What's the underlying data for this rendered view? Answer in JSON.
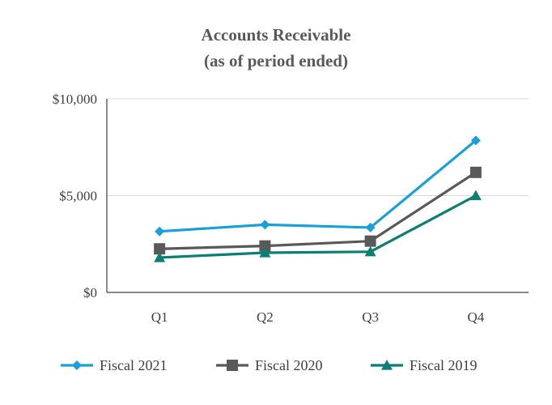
{
  "chart_data": {
    "type": "line",
    "title": "Accounts Receivable",
    "subtitle": "(as of period ended)",
    "categories": [
      "Q1",
      "Q2",
      "Q3",
      "Q4"
    ],
    "ylim": [
      0,
      10000
    ],
    "yticks": [
      {
        "value": 0,
        "label": "$0"
      },
      {
        "value": 5000,
        "label": "$5,000"
      },
      {
        "value": 10000,
        "label": "$10,000"
      }
    ],
    "grid": true,
    "legend": "bottom",
    "series": [
      {
        "name": "Fiscal 2021",
        "color": "#1aa0d8",
        "marker": "diamond",
        "values": [
          3150,
          3500,
          3350,
          7850
        ]
      },
      {
        "name": "Fiscal 2020",
        "color": "#595959",
        "marker": "square",
        "values": [
          2250,
          2400,
          2650,
          6200
        ]
      },
      {
        "name": "Fiscal 2019",
        "color": "#0b7f73",
        "marker": "triangle",
        "values": [
          1800,
          2050,
          2100,
          5000
        ]
      }
    ]
  }
}
